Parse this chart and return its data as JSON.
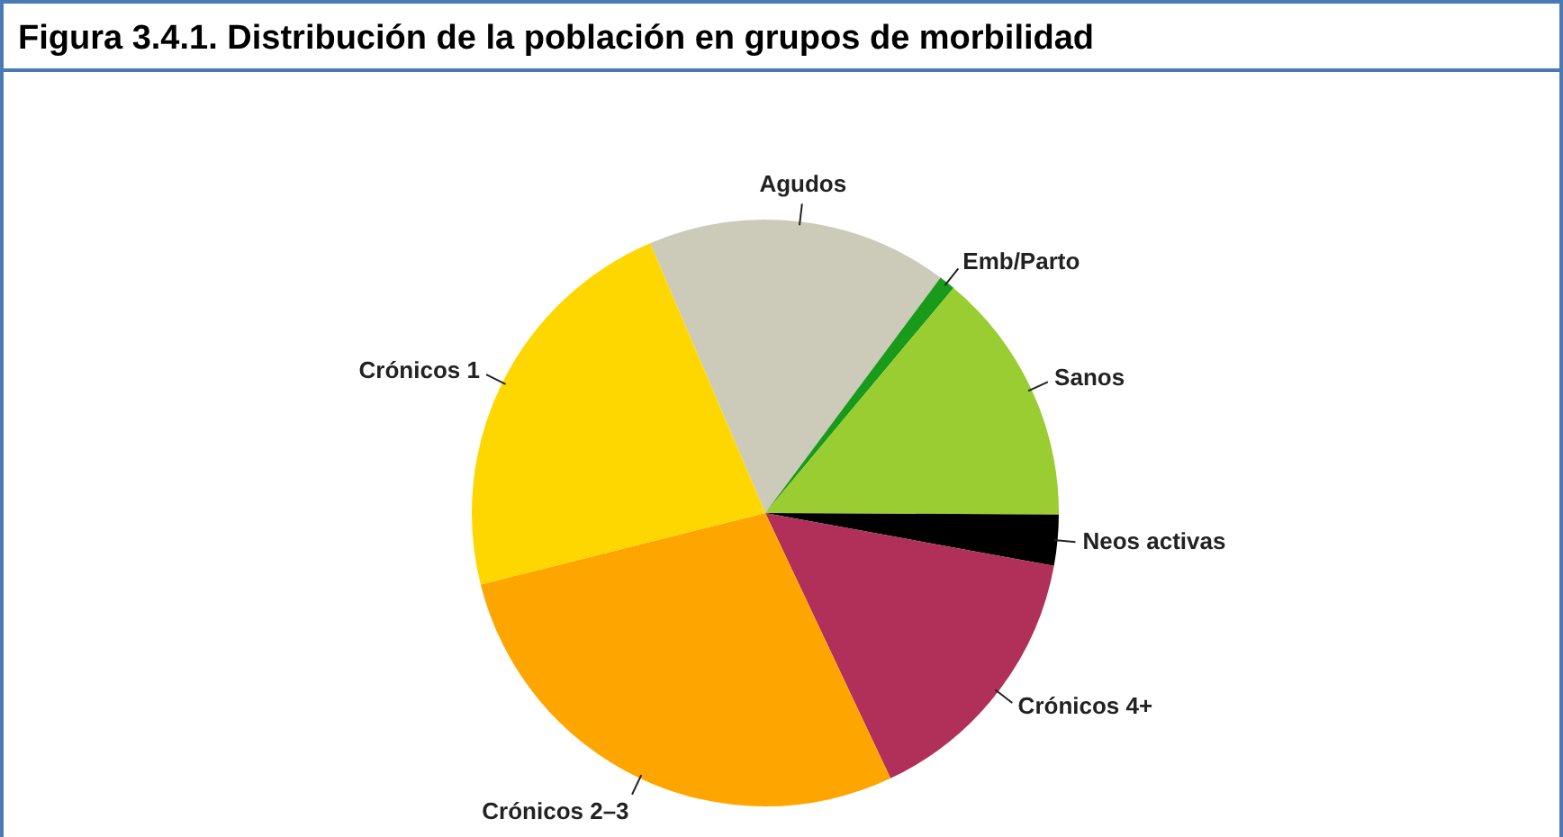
{
  "chart_data": {
    "type": "pie",
    "title": "Figura 3.4.1. Distribución de la población en grupos de morbilidad",
    "categories": [
      "Agudos",
      "Emb/Parto",
      "Sanos",
      "Neos activas",
      "Crónicos 4+",
      "Crónicos 2–3",
      "Crónicos 1"
    ],
    "values": [
      16.6,
      0.9,
      14.0,
      2.8,
      15.1,
      28.1,
      22.5
    ],
    "colors": [
      "#cccbb9",
      "#1a9a1a",
      "#9acd32",
      "#000000",
      "#b0305a",
      "#ffa500",
      "#ffd700"
    ],
    "legend": false
  }
}
